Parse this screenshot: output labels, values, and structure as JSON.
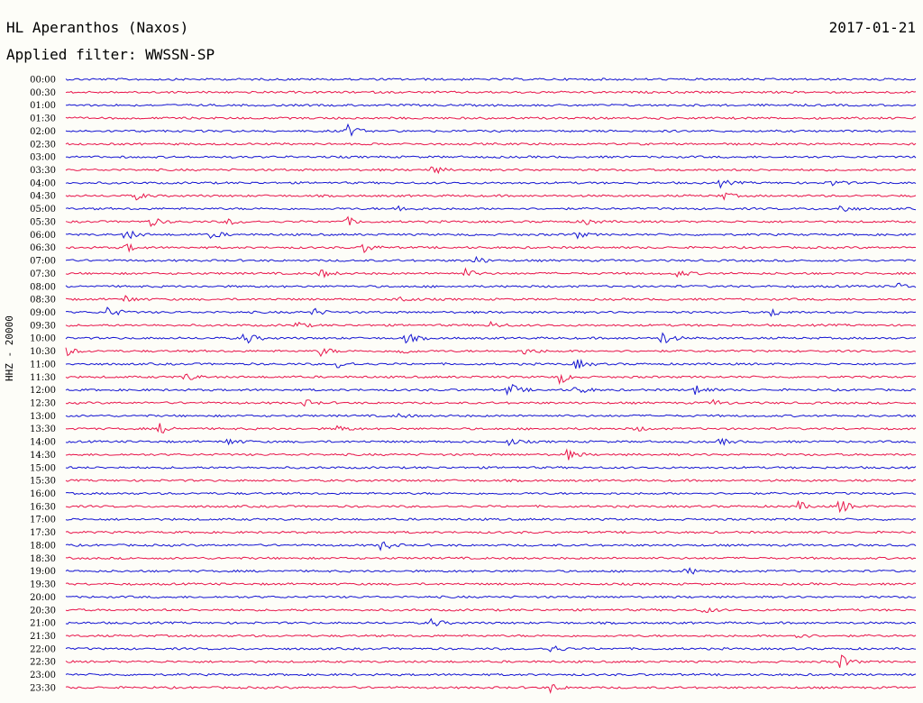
{
  "header": {
    "station": "HL Aperanthos (Naxos)",
    "filter": "Applied filter: WWSSN-SP",
    "date": "2017-01-21",
    "channel": "HHZ - 20000"
  },
  "colors": {
    "even_trace": "#1414d2",
    "odd_trace": "#e8144a",
    "background": "#fdfdf8"
  },
  "chart_data": {
    "type": "line",
    "title": "HL Aperanthos (Naxos)",
    "subtitle": "Applied filter: WWSSN-SP",
    "ylabel": "HHZ - 20000",
    "row_labels": [
      "00:00",
      "00:30",
      "01:00",
      "01:30",
      "02:00",
      "02:30",
      "03:00",
      "03:30",
      "04:00",
      "04:30",
      "05:00",
      "05:30",
      "06:00",
      "06:30",
      "07:00",
      "07:30",
      "08:00",
      "08:30",
      "09:00",
      "09:30",
      "10:00",
      "10:30",
      "11:00",
      "11:30",
      "12:00",
      "12:30",
      "13:00",
      "13:30",
      "14:00",
      "14:30",
      "15:00",
      "15:30",
      "16:00",
      "16:30",
      "17:00",
      "17:30",
      "18:00",
      "18:30",
      "19:00",
      "19:30",
      "20:00",
      "20:30",
      "21:00",
      "21:30",
      "22:00",
      "22:30",
      "23:00",
      "23:30"
    ],
    "events": [
      {
        "row": 4,
        "pos": 0.33,
        "amp": 8
      },
      {
        "row": 7,
        "pos": 0.43,
        "amp": 5
      },
      {
        "row": 8,
        "pos": 0.77,
        "amp": 4
      },
      {
        "row": 8,
        "pos": 0.9,
        "amp": 4
      },
      {
        "row": 9,
        "pos": 0.08,
        "amp": 5
      },
      {
        "row": 9,
        "pos": 0.77,
        "amp": 5
      },
      {
        "row": 10,
        "pos": 0.39,
        "amp": 5
      },
      {
        "row": 10,
        "pos": 0.91,
        "amp": 6
      },
      {
        "row": 11,
        "pos": 0.1,
        "amp": 5
      },
      {
        "row": 11,
        "pos": 0.19,
        "amp": 4
      },
      {
        "row": 11,
        "pos": 0.33,
        "amp": 5
      },
      {
        "row": 11,
        "pos": 0.61,
        "amp": 4
      },
      {
        "row": 12,
        "pos": 0.07,
        "amp": 7
      },
      {
        "row": 12,
        "pos": 0.17,
        "amp": 5
      },
      {
        "row": 12,
        "pos": 0.6,
        "amp": 4
      },
      {
        "row": 13,
        "pos": 0.07,
        "amp": 5
      },
      {
        "row": 13,
        "pos": 0.35,
        "amp": 6
      },
      {
        "row": 14,
        "pos": 0.48,
        "amp": 5
      },
      {
        "row": 15,
        "pos": 0.3,
        "amp": 5
      },
      {
        "row": 15,
        "pos": 0.47,
        "amp": 5
      },
      {
        "row": 15,
        "pos": 0.72,
        "amp": 4
      },
      {
        "row": 16,
        "pos": 0.98,
        "amp": 4
      },
      {
        "row": 17,
        "pos": 0.07,
        "amp": 4
      },
      {
        "row": 17,
        "pos": 0.39,
        "amp": 5
      },
      {
        "row": 18,
        "pos": 0.05,
        "amp": 7
      },
      {
        "row": 18,
        "pos": 0.29,
        "amp": 5
      },
      {
        "row": 18,
        "pos": 0.83,
        "amp": 5
      },
      {
        "row": 19,
        "pos": 0.27,
        "amp": 4
      },
      {
        "row": 19,
        "pos": 0.5,
        "amp": 4
      },
      {
        "row": 20,
        "pos": 0.21,
        "amp": 8
      },
      {
        "row": 20,
        "pos": 0.4,
        "amp": 6
      },
      {
        "row": 20,
        "pos": 0.7,
        "amp": 9
      },
      {
        "row": 21,
        "pos": 0.0,
        "amp": 5
      },
      {
        "row": 21,
        "pos": 0.3,
        "amp": 5
      },
      {
        "row": 21,
        "pos": 0.39,
        "amp": 5
      },
      {
        "row": 21,
        "pos": 0.54,
        "amp": 5
      },
      {
        "row": 22,
        "pos": 0.32,
        "amp": 5
      },
      {
        "row": 22,
        "pos": 0.6,
        "amp": 6
      },
      {
        "row": 23,
        "pos": 0.14,
        "amp": 5
      },
      {
        "row": 23,
        "pos": 0.58,
        "amp": 8
      },
      {
        "row": 24,
        "pos": 0.52,
        "amp": 9
      },
      {
        "row": 24,
        "pos": 0.6,
        "amp": 6
      },
      {
        "row": 24,
        "pos": 0.74,
        "amp": 7
      },
      {
        "row": 25,
        "pos": 0.28,
        "amp": 4
      },
      {
        "row": 25,
        "pos": 0.76,
        "amp": 4
      },
      {
        "row": 26,
        "pos": 0.39,
        "amp": 3
      },
      {
        "row": 27,
        "pos": 0.11,
        "amp": 6
      },
      {
        "row": 27,
        "pos": 0.32,
        "amp": 4
      },
      {
        "row": 27,
        "pos": 0.67,
        "amp": 3
      },
      {
        "row": 28,
        "pos": 0.19,
        "amp": 4
      },
      {
        "row": 28,
        "pos": 0.52,
        "amp": 4
      },
      {
        "row": 28,
        "pos": 0.77,
        "amp": 4
      },
      {
        "row": 29,
        "pos": 0.59,
        "amp": 6
      },
      {
        "row": 33,
        "pos": 0.86,
        "amp": 6
      },
      {
        "row": 33,
        "pos": 0.91,
        "amp": 9
      },
      {
        "row": 36,
        "pos": 0.37,
        "amp": 7
      },
      {
        "row": 38,
        "pos": 0.73,
        "amp": 5
      },
      {
        "row": 41,
        "pos": 0.75,
        "amp": 4
      },
      {
        "row": 42,
        "pos": 0.43,
        "amp": 5
      },
      {
        "row": 43,
        "pos": 0.86,
        "amp": 4
      },
      {
        "row": 44,
        "pos": 0.57,
        "amp": 5
      },
      {
        "row": 45,
        "pos": 0.91,
        "amp": 9
      },
      {
        "row": 47,
        "pos": 0.57,
        "amp": 5
      }
    ]
  }
}
